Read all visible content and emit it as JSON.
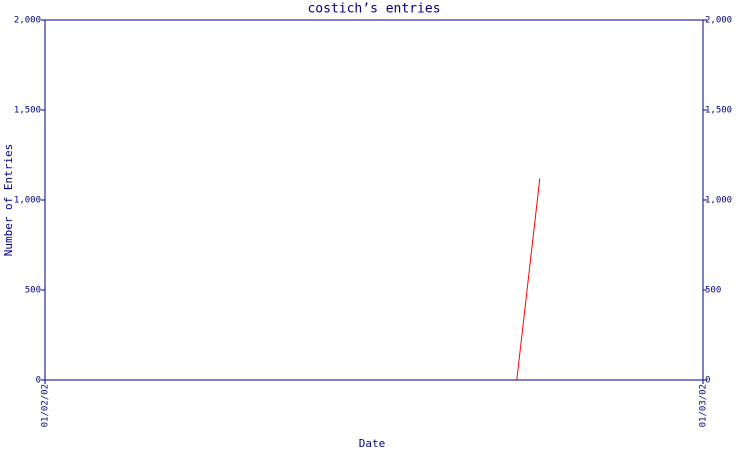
{
  "chart_data": {
    "type": "line",
    "title": "costich’s entries",
    "x_label": "Date",
    "y_label": "Number of Entries",
    "x": [
      0.717,
      0.752
    ],
    "series": [
      {
        "name": "entries",
        "color": "#ff0000",
        "values": [
          0,
          1120
        ]
      }
    ],
    "xlim": [
      0,
      1
    ],
    "xticks": [
      {
        "value": 0,
        "label": "01/02/02"
      },
      {
        "value": 1,
        "label": "01/03/02"
      }
    ],
    "ylim": [
      0,
      2000
    ],
    "yticks": [
      0,
      500,
      {
        "value": 1000,
        "label": "1,000"
      },
      {
        "value": 1500,
        "label": "1,500"
      },
      {
        "value": 2000,
        "label": "2,000"
      }
    ],
    "axis_color": "#000080"
  }
}
